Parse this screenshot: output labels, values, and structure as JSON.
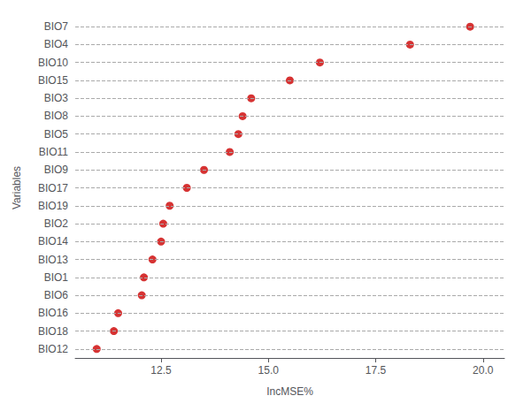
{
  "chart_data": {
    "type": "lollipop",
    "categories": [
      "BIO12",
      "BIO18",
      "BIO16",
      "BIO6",
      "BIO1",
      "BIO13",
      "BIO14",
      "BIO2",
      "BIO19",
      "BIO17",
      "BIO9",
      "BIO11",
      "BIO5",
      "BIO8",
      "BIO3",
      "BIO15",
      "BIO10",
      "BIO4",
      "BIO7"
    ],
    "values": [
      11.0,
      11.4,
      11.5,
      12.05,
      12.1,
      12.3,
      12.5,
      12.55,
      12.7,
      13.1,
      13.5,
      14.1,
      14.3,
      14.4,
      14.6,
      15.5,
      16.2,
      18.3,
      19.7
    ],
    "color": "#cc0000",
    "line_style": "dashed",
    "xlabel": "IncMSE%",
    "ylabel": "Variables",
    "xlim": [
      10.5,
      20.5
    ],
    "xticks": [
      12.5,
      {
        "value": 15,
        "label": "15.0"
      },
      17.5,
      {
        "value": 20,
        "label": "20.0"
      }
    ],
    "grid": false
  }
}
